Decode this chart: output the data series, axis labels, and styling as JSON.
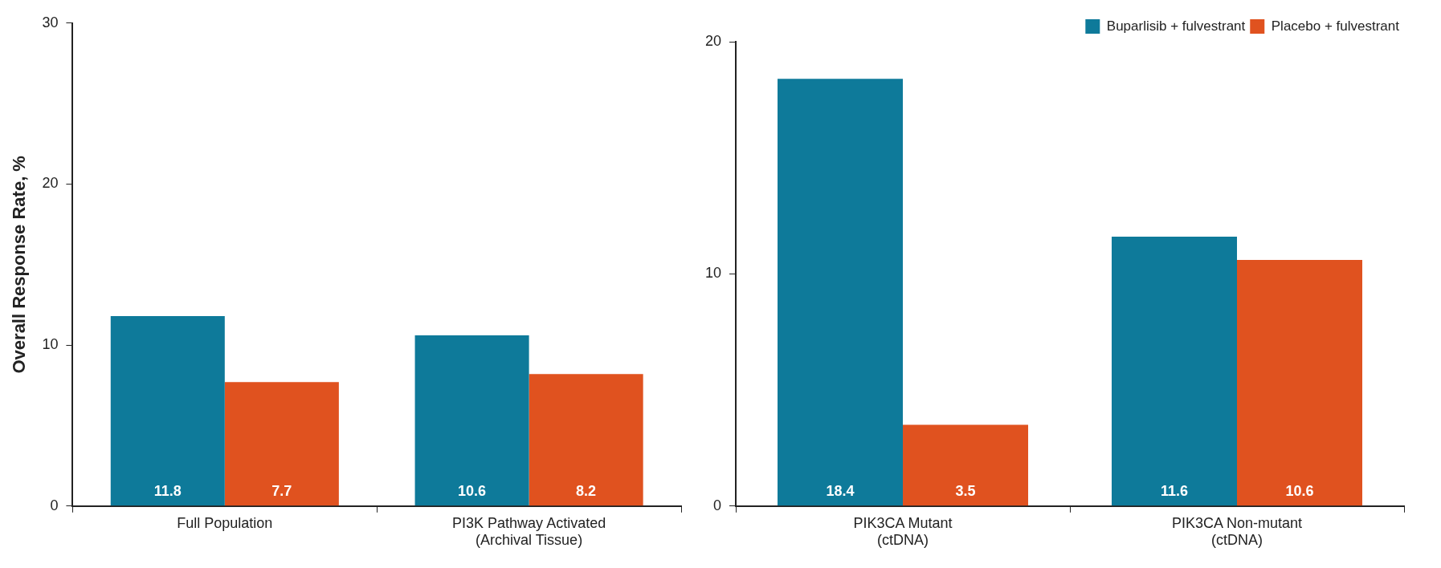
{
  "chart_data": [
    {
      "type": "bar",
      "ylabel": "Overall Response Rate, %",
      "categories": [
        "Full Population",
        "PI3K Pathway Activated\n(Archival Tissue)"
      ],
      "ylim": [
        0,
        30
      ],
      "yticks": [
        0,
        10,
        20,
        30
      ],
      "grid": false,
      "data_labels": true,
      "legend": false,
      "series": [
        {
          "color": "#0e7a9a",
          "values": [
            11.8,
            10.6
          ]
        },
        {
          "color": "#e0521f",
          "values": [
            7.7,
            8.2
          ]
        }
      ]
    },
    {
      "type": "bar",
      "categories": [
        "PIK3CA Mutant\n(ctDNA)",
        "PIK3CA Non-mutant\n(ctDNA)"
      ],
      "ylim": [
        0,
        20
      ],
      "yticks": [
        0,
        10,
        20
      ],
      "grid": false,
      "data_labels": true,
      "legend": "top right",
      "series": [
        {
          "name": "Buparlisib + fulvestrant",
          "color": "#0e7a9a",
          "values": [
            18.4,
            11.6
          ]
        },
        {
          "name": "Placebo + fulvestrant",
          "color": "#e0521f",
          "values": [
            3.5,
            10.6
          ]
        }
      ]
    }
  ]
}
